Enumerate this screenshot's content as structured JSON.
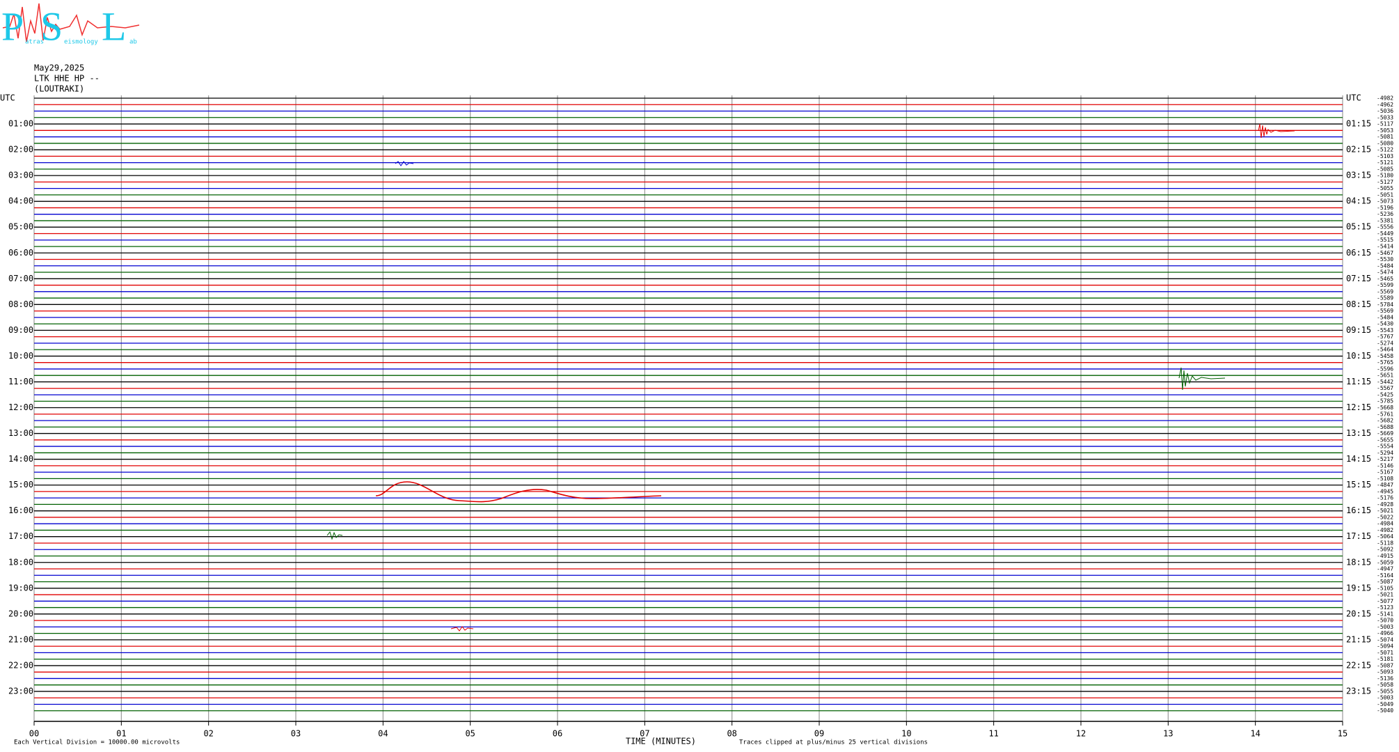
{
  "chart_data": {
    "type": "helicorder",
    "logo": {
      "letters": [
        "P",
        "S",
        "L"
      ],
      "small": [
        "atras",
        "eismology",
        "ab"
      ]
    },
    "date": "May29,2025",
    "station": "LTK HHE HP --",
    "location": "(LOUTRAKI)",
    "xlim": [
      0,
      15
    ],
    "xticks": [
      {
        "value": 0,
        "label": "00"
      },
      {
        "value": 1,
        "label": "01"
      },
      {
        "value": 2,
        "label": "02"
      },
      {
        "value": 3,
        "label": "03"
      },
      {
        "value": 4,
        "label": "04"
      },
      {
        "value": 5,
        "label": "05"
      },
      {
        "value": 6,
        "label": "06"
      },
      {
        "value": 7,
        "label": "07"
      },
      {
        "value": 8,
        "label": "08"
      },
      {
        "value": 9,
        "label": "09"
      },
      {
        "value": 10,
        "label": "10"
      },
      {
        "value": 11,
        "label": "11"
      },
      {
        "value": 12,
        "label": "12"
      },
      {
        "value": 13,
        "label": "13"
      },
      {
        "value": 14,
        "label": "14"
      },
      {
        "value": 15,
        "label": "15"
      }
    ],
    "xlabel": "TIME (MINUTES)",
    "left_labels": [
      "UTC",
      "01:00",
      "02:00",
      "03:00",
      "04:00",
      "05:00",
      "06:00",
      "07:00",
      "08:00",
      "09:00",
      "10:00",
      "11:00",
      "12:00",
      "13:00",
      "14:00",
      "15:00",
      "16:00",
      "17:00",
      "18:00",
      "19:00",
      "20:00",
      "21:00",
      "22:00",
      "23:00"
    ],
    "right_labels": [
      "UTC",
      "01:15",
      "02:15",
      "03:15",
      "04:15",
      "05:15",
      "06:15",
      "07:15",
      "08:15",
      "09:15",
      "10:15",
      "11:15",
      "12:15",
      "13:15",
      "14:15",
      "15:15",
      "16:15",
      "17:15",
      "18:15",
      "19:15",
      "20:15",
      "21:15",
      "22:15",
      "23:15"
    ],
    "trace_offsets": [
      -4982,
      -4962,
      -5036,
      -5033,
      -5117,
      -5053,
      -5081,
      -5080,
      -5122,
      -5103,
      -5121,
      -5085,
      -5180,
      -5127,
      -5055,
      -5051,
      -5073,
      -5196,
      -5236,
      -5381,
      -5556,
      -5449,
      -5515,
      -5414,
      -5467,
      -5530,
      -5484,
      -5474,
      -5465,
      -5599,
      -5569,
      -5589,
      -5784,
      -5569,
      -5484,
      -5430,
      -5543,
      -5767,
      -5274,
      -5464,
      -5458,
      -5765,
      -5596,
      -5651,
      -5442,
      -5567,
      -5425,
      -5785,
      -5668,
      -5761,
      -5682,
      -5688,
      -5669,
      -5655,
      -5554,
      -5294,
      -5217,
      -5146,
      -5167,
      -5108,
      -4847,
      -4945,
      -5176,
      -4928,
      -5021,
      -5022,
      -4984,
      -4982,
      -5064,
      -5118,
      -5092,
      -4915,
      -5059,
      -4947,
      -5164,
      -5087,
      -5105,
      -5021,
      -5077,
      -5123,
      -5141,
      -5070,
      -5003,
      -4966,
      -5074,
      -5094,
      -5071,
      -5181,
      -5087,
      -5093,
      -5136,
      -5058,
      -5055,
      -5003,
      -5049,
      -5040
    ],
    "trace_colors": [
      "#000000",
      "#e00000",
      "#0000d0",
      "#006000"
    ],
    "grid": true,
    "scale_note": "Each Vertical Division = 10000.00 microvolts",
    "clip_note": "Traces clipped at plus/minus 25 vertical divisions"
  }
}
